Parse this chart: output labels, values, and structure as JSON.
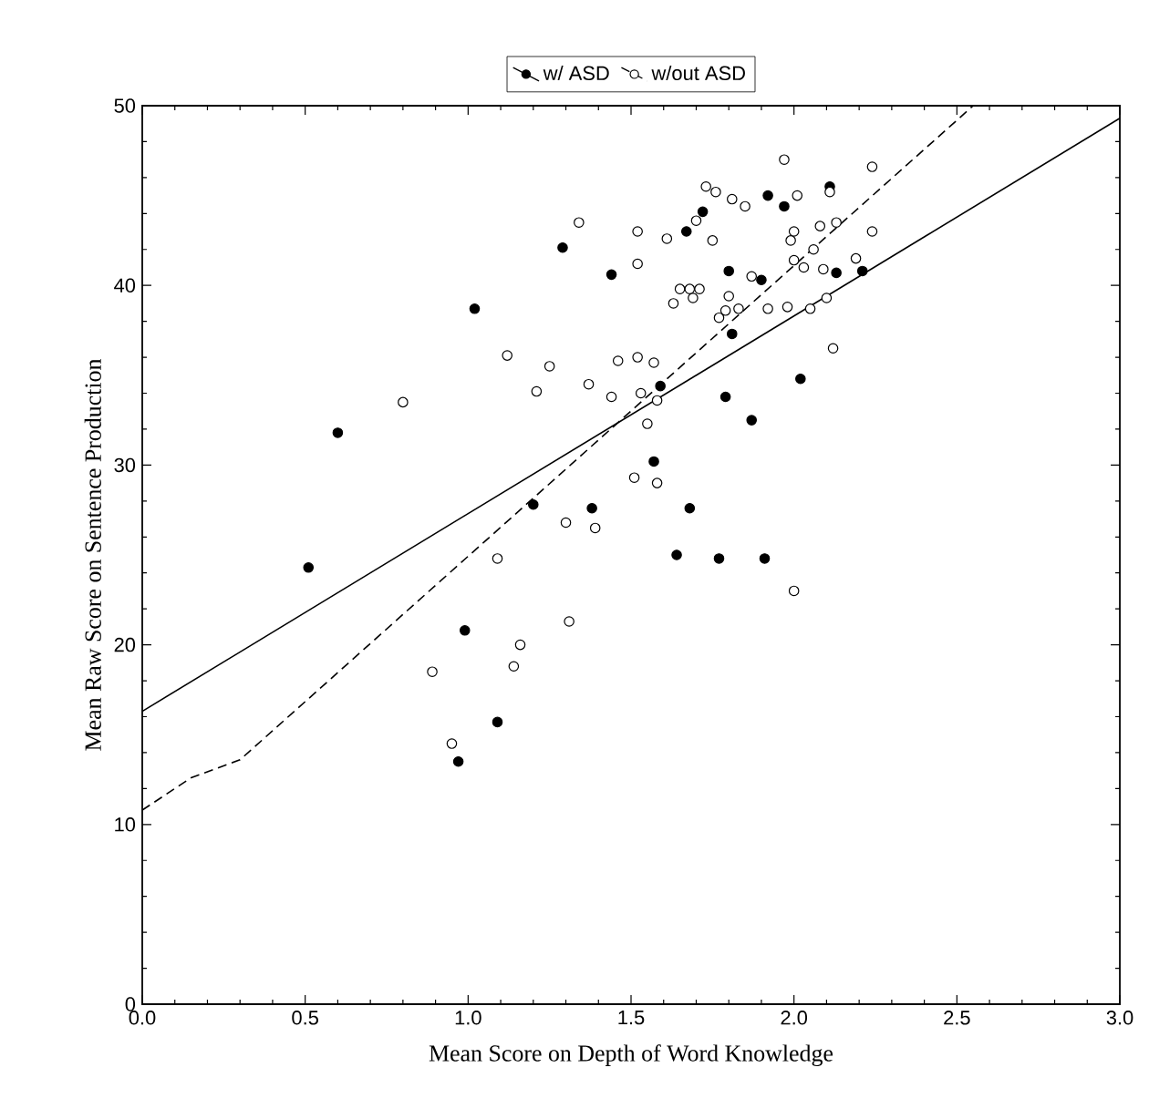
{
  "chart_data": {
    "type": "scatter",
    "xlabel": "Mean Score on Depth of Word Knowledge",
    "ylabel": "Mean Raw Score on Sentence Production",
    "xlim": [
      0,
      3
    ],
    "ylim": [
      0,
      50
    ],
    "xticks": [
      {
        "value": 0,
        "label": "0.0"
      },
      {
        "value": 0.5,
        "label": "0.5"
      },
      {
        "value": 1,
        "label": "1.0"
      },
      {
        "value": 1.5,
        "label": "1.5"
      },
      {
        "value": 2,
        "label": "2.0"
      },
      {
        "value": 2.5,
        "label": "2.5"
      },
      {
        "value": 3,
        "label": "3.0"
      }
    ],
    "yticks": [
      0,
      10,
      20,
      30,
      40,
      50
    ],
    "legend": "top",
    "grid": false,
    "series": [
      {
        "name": "w/ ASD",
        "marker": "circle",
        "color": "#000000",
        "x": [
          0.51,
          0.6,
          0.97,
          0.99,
          1.02,
          1.09,
          1.2,
          1.29,
          1.38,
          1.44,
          1.57,
          1.59,
          1.64,
          1.67,
          1.68,
          1.72,
          1.77,
          1.79,
          1.8,
          1.81,
          1.87,
          1.9,
          1.91,
          1.92,
          1.97,
          2.02,
          2.13,
          2.11,
          2.21
        ],
        "values": [
          24.3,
          31.8,
          13.5,
          20.8,
          38.7,
          15.7,
          27.8,
          42.1,
          27.6,
          40.6,
          30.2,
          34.4,
          25.0,
          43.0,
          27.6,
          44.1,
          24.8,
          33.8,
          40.8,
          37.3,
          32.5,
          40.3,
          24.8,
          45.0,
          44.4,
          34.8,
          40.7,
          45.5,
          40.8
        ]
      },
      {
        "name": "w/out ASD",
        "marker": "circle",
        "color": "#ffffff",
        "x": [
          0.8,
          0.89,
          0.95,
          1.09,
          1.12,
          1.14,
          1.16,
          1.21,
          1.25,
          1.3,
          1.31,
          1.34,
          1.37,
          1.39,
          1.44,
          1.46,
          1.51,
          1.52,
          1.52,
          1.52,
          1.53,
          1.55,
          1.57,
          1.58,
          1.58,
          1.61,
          1.63,
          1.65,
          1.68,
          1.69,
          1.7,
          1.71,
          1.73,
          1.75,
          1.76,
          1.77,
          1.79,
          1.8,
          1.81,
          1.83,
          1.85,
          1.87,
          1.92,
          1.97,
          1.98,
          1.99,
          2.0,
          2.0,
          2.01,
          2.03,
          2.05,
          2.06,
          2.08,
          2.09,
          2.1,
          2.11,
          2.12,
          2.13,
          2.19,
          2.24,
          2.24,
          2.0
        ],
        "values": [
          33.5,
          18.5,
          14.5,
          24.8,
          36.1,
          18.8,
          20.0,
          34.1,
          35.5,
          26.8,
          21.3,
          43.5,
          34.5,
          26.5,
          33.8,
          35.8,
          29.3,
          43.0,
          41.2,
          36.0,
          34.0,
          32.3,
          35.7,
          29.0,
          33.6,
          42.6,
          39.0,
          39.8,
          39.8,
          39.3,
          43.6,
          39.8,
          45.5,
          42.5,
          45.2,
          38.2,
          38.6,
          39.4,
          44.8,
          38.7,
          44.4,
          40.5,
          38.7,
          47.0,
          38.8,
          42.5,
          43.0,
          41.4,
          45.0,
          41.0,
          38.7,
          42.0,
          43.3,
          40.9,
          39.3,
          45.2,
          36.5,
          43.5,
          41.5,
          46.6,
          43.0,
          23.0
        ]
      },
      {
        "type": "line",
        "line_style": "solid",
        "color": "#000000",
        "x": [
          0,
          3
        ],
        "values": [
          16.3,
          49.3
        ]
      },
      {
        "type": "line",
        "line_style": "dashed",
        "color": "#000000",
        "x": [
          0,
          0.15,
          0.3,
          2.55
        ],
        "values": [
          10.8,
          12.6,
          13.6,
          50
        ]
      }
    ]
  }
}
